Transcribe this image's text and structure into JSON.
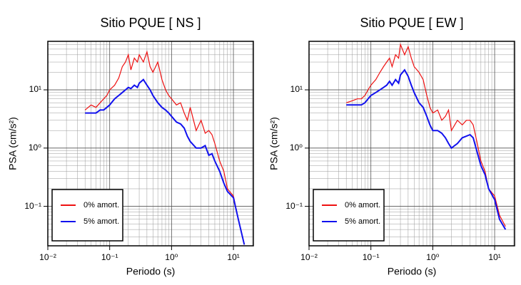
{
  "chart_data": [
    {
      "type": "line",
      "title": "Sitio PQUE [ NS ]",
      "xlabel": "Periodo (s)",
      "ylabel": "PSA (cm/s²)",
      "log_scale": true,
      "grid": true,
      "legend": "lower left",
      "xlim": [
        0.01,
        21
      ],
      "ylim": [
        0.021,
        68
      ],
      "xticks": [
        {
          "value": 0.01,
          "label": "10⁻²"
        },
        {
          "value": 0.1,
          "label": "10⁻¹"
        },
        {
          "value": 1,
          "label": "10⁰"
        },
        {
          "value": 10,
          "label": "10¹"
        }
      ],
      "yticks": [
        {
          "value": 0.1,
          "label": "10⁻¹"
        },
        {
          "value": 1,
          "label": "10⁰"
        },
        {
          "value": 10,
          "label": "10¹"
        }
      ],
      "x": [
        0.04,
        0.05,
        0.06,
        0.07,
        0.08,
        0.09,
        0.1,
        0.12,
        0.14,
        0.16,
        0.18,
        0.2,
        0.22,
        0.25,
        0.28,
        0.3,
        0.35,
        0.4,
        0.45,
        0.5,
        0.6,
        0.7,
        0.8,
        0.9,
        1.0,
        1.2,
        1.4,
        1.6,
        1.8,
        2.0,
        2.5,
        3.0,
        3.5,
        4.0,
        4.5,
        5.0,
        6.0,
        7.0,
        8.0,
        10.0,
        12.0,
        15.0
      ],
      "series": [
        {
          "name": "0% amort.",
          "color": "#ee1111",
          "values": [
            4.5,
            5.5,
            5,
            6,
            7,
            8,
            10,
            12,
            16,
            25,
            30,
            40,
            22,
            35,
            30,
            40,
            30,
            45,
            25,
            20,
            30,
            15,
            10,
            8,
            7,
            5.5,
            6,
            4,
            3,
            5,
            2,
            3,
            1.8,
            2,
            1.7,
            1.2,
            0.6,
            0.4,
            0.2,
            0.15,
            0.06,
            0.022
          ]
        },
        {
          "name": "5% amort.",
          "color": "#1111ee",
          "values": [
            4,
            4,
            4,
            4.5,
            4.5,
            5,
            5.5,
            7,
            8,
            9,
            10,
            11,
            10.5,
            12,
            11,
            13,
            15,
            12,
            10,
            8,
            6,
            5,
            4.5,
            4,
            3.5,
            2.8,
            2.6,
            2.2,
            1.6,
            1.3,
            1.0,
            1.0,
            1.1,
            0.75,
            0.8,
            0.6,
            0.4,
            0.25,
            0.18,
            0.14,
            0.06,
            0.022
          ]
        }
      ]
    },
    {
      "type": "line",
      "title": "Sitio PQUE [ EW ]",
      "xlabel": "Periodo (s)",
      "ylabel": "PSA (cm/s²)",
      "log_scale": true,
      "grid": true,
      "legend": "lower left",
      "xlim": [
        0.01,
        21
      ],
      "ylim": [
        0.021,
        68
      ],
      "xticks": [
        {
          "value": 0.01,
          "label": "10⁻²"
        },
        {
          "value": 0.1,
          "label": "10⁻¹"
        },
        {
          "value": 1,
          "label": "10⁰"
        },
        {
          "value": 10,
          "label": "10¹"
        }
      ],
      "yticks": [
        {
          "value": 0.1,
          "label": "10⁻¹"
        },
        {
          "value": 1,
          "label": "10⁰"
        },
        {
          "value": 10,
          "label": "10¹"
        }
      ],
      "x": [
        0.04,
        0.05,
        0.06,
        0.07,
        0.08,
        0.09,
        0.1,
        0.12,
        0.14,
        0.16,
        0.18,
        0.2,
        0.22,
        0.25,
        0.28,
        0.3,
        0.35,
        0.4,
        0.45,
        0.5,
        0.6,
        0.7,
        0.8,
        0.9,
        1.0,
        1.2,
        1.4,
        1.6,
        1.8,
        2.0,
        2.5,
        3.0,
        3.5,
        4.0,
        4.5,
        5.0,
        6.0,
        7.0,
        8.0,
        10.0,
        12.0,
        15.0
      ],
      "series": [
        {
          "name": "0% amort.",
          "color": "#ee1111",
          "values": [
            6,
            6.5,
            7,
            7,
            8,
            10,
            12,
            15,
            20,
            25,
            30,
            35,
            25,
            40,
            35,
            60,
            40,
            55,
            35,
            25,
            20,
            15,
            8,
            5,
            4,
            4.5,
            3,
            3.5,
            4.5,
            2,
            3,
            2.5,
            3,
            3,
            2.5,
            1.5,
            0.6,
            0.4,
            0.2,
            0.15,
            0.07,
            0.045
          ]
        },
        {
          "name": "5% amort.",
          "color": "#1111ee",
          "values": [
            5.5,
            5.5,
            5.5,
            5.5,
            6,
            7,
            8,
            9,
            10,
            11,
            12,
            14,
            12,
            15,
            13,
            18,
            22,
            17,
            12,
            9,
            6,
            5,
            3.5,
            2.5,
            2,
            2,
            1.8,
            1.5,
            1.2,
            1.0,
            1.2,
            1.5,
            1.6,
            1.7,
            1.5,
            1.0,
            0.5,
            0.35,
            0.2,
            0.13,
            0.06,
            0.04
          ]
        }
      ]
    }
  ]
}
